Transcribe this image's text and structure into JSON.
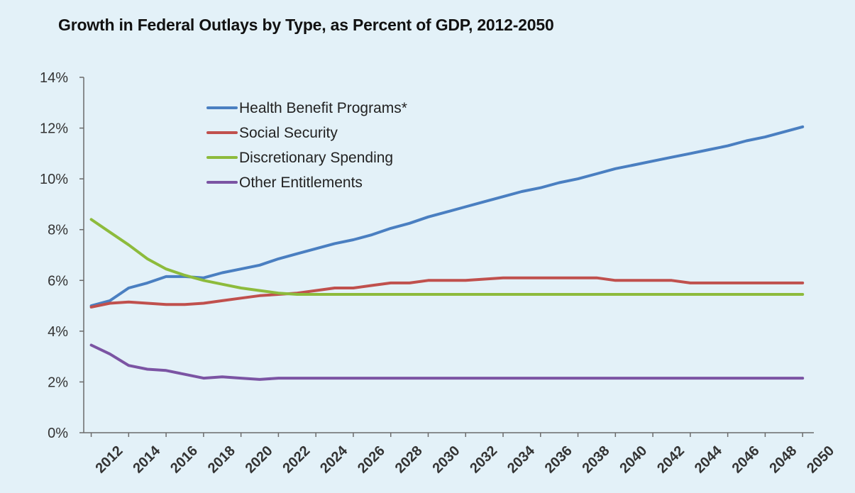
{
  "chart_data": {
    "type": "line",
    "title": "Growth in Federal Outlays by Type, as Percent of GDP, 2012-2050",
    "xlabel": "",
    "ylabel": "",
    "x": [
      2012,
      2013,
      2014,
      2015,
      2016,
      2017,
      2018,
      2019,
      2020,
      2021,
      2022,
      2023,
      2024,
      2025,
      2026,
      2027,
      2028,
      2029,
      2030,
      2031,
      2032,
      2033,
      2034,
      2035,
      2036,
      2037,
      2038,
      2039,
      2040,
      2041,
      2042,
      2043,
      2044,
      2045,
      2046,
      2047,
      2048,
      2049,
      2050
    ],
    "xticks": [
      "2012",
      "2014",
      "2016",
      "2018",
      "2020",
      "2022",
      "2024",
      "2026",
      "2028",
      "2030",
      "2032",
      "2034",
      "2036",
      "2038",
      "2040",
      "2042",
      "2044",
      "2046",
      "2048",
      "2050"
    ],
    "yticks": [
      "0%",
      "2%",
      "4%",
      "6%",
      "8%",
      "10%",
      "12%",
      "14%"
    ],
    "ylim": [
      0,
      14
    ],
    "legend_position": "upper-left-inside",
    "grid": false,
    "series": [
      {
        "name": "Health Benefit Programs*",
        "color": "#4a7fc1",
        "values": [
          5.0,
          5.2,
          5.7,
          5.9,
          6.15,
          6.15,
          6.1,
          6.3,
          6.45,
          6.6,
          6.85,
          7.05,
          7.25,
          7.45,
          7.6,
          7.8,
          8.05,
          8.25,
          8.5,
          8.7,
          8.9,
          9.1,
          9.3,
          9.5,
          9.65,
          9.85,
          10.0,
          10.2,
          10.4,
          10.55,
          10.7,
          10.85,
          11.0,
          11.15,
          11.3,
          11.5,
          11.65,
          11.85,
          12.05
        ]
      },
      {
        "name": "Social Security",
        "color": "#c0504d",
        "values": [
          4.95,
          5.1,
          5.15,
          5.1,
          5.05,
          5.05,
          5.1,
          5.2,
          5.3,
          5.4,
          5.45,
          5.5,
          5.6,
          5.7,
          5.7,
          5.8,
          5.9,
          5.9,
          6.0,
          6.0,
          6.0,
          6.05,
          6.1,
          6.1,
          6.1,
          6.1,
          6.1,
          6.1,
          6.0,
          6.0,
          6.0,
          6.0,
          5.9,
          5.9,
          5.9,
          5.9,
          5.9,
          5.9,
          5.9
        ]
      },
      {
        "name": "Discretionary Spending",
        "color": "#8dbb3c",
        "values": [
          8.4,
          7.9,
          7.4,
          6.85,
          6.45,
          6.2,
          6.0,
          5.85,
          5.7,
          5.6,
          5.5,
          5.45,
          5.45,
          5.45,
          5.45,
          5.45,
          5.45,
          5.45,
          5.45,
          5.45,
          5.45,
          5.45,
          5.45,
          5.45,
          5.45,
          5.45,
          5.45,
          5.45,
          5.45,
          5.45,
          5.45,
          5.45,
          5.45,
          5.45,
          5.45,
          5.45,
          5.45,
          5.45,
          5.45
        ]
      },
      {
        "name": "Other Entitlements",
        "color": "#7b54a3",
        "values": [
          3.45,
          3.1,
          2.65,
          2.5,
          2.45,
          2.3,
          2.15,
          2.2,
          2.15,
          2.1,
          2.15,
          2.15,
          2.15,
          2.15,
          2.15,
          2.15,
          2.15,
          2.15,
          2.15,
          2.15,
          2.15,
          2.15,
          2.15,
          2.15,
          2.15,
          2.15,
          2.15,
          2.15,
          2.15,
          2.15,
          2.15,
          2.15,
          2.15,
          2.15,
          2.15,
          2.15,
          2.15,
          2.15,
          2.15
        ]
      }
    ]
  }
}
